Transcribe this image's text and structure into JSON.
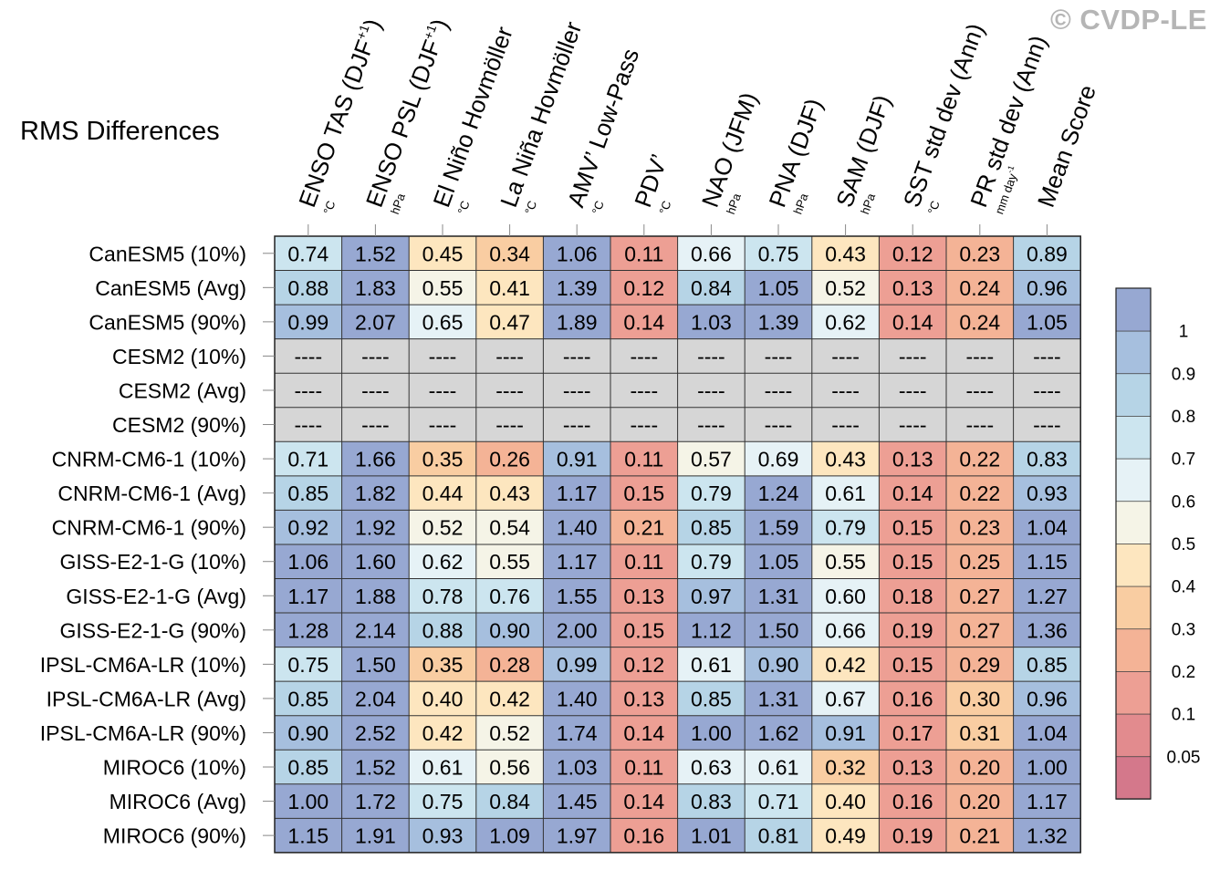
{
  "watermark": "© CVDP-LE",
  "chart_data": {
    "type": "heatmap",
    "title": "RMS Differences",
    "columns": [
      {
        "label": "ENSO TAS (DJF",
        "sup": "+1",
        "close": ")",
        "unit": "°C"
      },
      {
        "label": "ENSO PSL (DJF",
        "sup": "+1",
        "close": ")",
        "unit": "hPa"
      },
      {
        "label": "El Niño Hovmöller",
        "sup": "",
        "close": "",
        "unit": "°C"
      },
      {
        "label": "La Niña Hovmöller",
        "sup": "",
        "close": "",
        "unit": "°C"
      },
      {
        "label": "AMV’ Low-Pass",
        "sup": "",
        "close": "",
        "unit": "°C"
      },
      {
        "label": "PDV’",
        "sup": "",
        "close": "",
        "unit": "°C"
      },
      {
        "label": "NAO (JFM)",
        "sup": "",
        "close": "",
        "unit": "hPa"
      },
      {
        "label": "PNA (DJF)",
        "sup": "",
        "close": "",
        "unit": "hPa"
      },
      {
        "label": "SAM (DJF)",
        "sup": "",
        "close": "",
        "unit": "hPa"
      },
      {
        "label": "SST std dev (Ann)",
        "sup": "",
        "close": "",
        "unit": "°C"
      },
      {
        "label": "PR std dev (Ann)",
        "sup": "",
        "close": "",
        "unit": "mm day",
        "unit_sup": "-1"
      },
      {
        "label": "Mean Score",
        "sup": "",
        "close": "",
        "unit": ""
      }
    ],
    "rows": [
      {
        "label": "CanESM5 (10%)",
        "values": [
          0.74,
          1.52,
          0.45,
          0.34,
          1.06,
          0.11,
          0.66,
          0.75,
          0.43,
          0.12,
          0.23,
          0.89
        ]
      },
      {
        "label": "CanESM5 (Avg)",
        "values": [
          0.88,
          1.83,
          0.55,
          0.41,
          1.39,
          0.12,
          0.84,
          1.05,
          0.52,
          0.13,
          0.24,
          0.96
        ]
      },
      {
        "label": "CanESM5 (90%)",
        "values": [
          0.99,
          2.07,
          0.65,
          0.47,
          1.89,
          0.14,
          1.03,
          1.39,
          0.62,
          0.14,
          0.24,
          1.05
        ]
      },
      {
        "label": "CESM2 (10%)",
        "values": [
          null,
          null,
          null,
          null,
          null,
          null,
          null,
          null,
          null,
          null,
          null,
          null
        ]
      },
      {
        "label": "CESM2 (Avg)",
        "values": [
          null,
          null,
          null,
          null,
          null,
          null,
          null,
          null,
          null,
          null,
          null,
          null
        ]
      },
      {
        "label": "CESM2 (90%)",
        "values": [
          null,
          null,
          null,
          null,
          null,
          null,
          null,
          null,
          null,
          null,
          null,
          null
        ]
      },
      {
        "label": "CNRM-CM6-1 (10%)",
        "values": [
          0.71,
          1.66,
          0.35,
          0.26,
          0.91,
          0.11,
          0.57,
          0.69,
          0.43,
          0.13,
          0.22,
          0.83
        ]
      },
      {
        "label": "CNRM-CM6-1 (Avg)",
        "values": [
          0.85,
          1.82,
          0.44,
          0.43,
          1.17,
          0.15,
          0.79,
          1.24,
          0.61,
          0.14,
          0.22,
          0.93
        ]
      },
      {
        "label": "CNRM-CM6-1 (90%)",
        "values": [
          0.92,
          1.92,
          0.52,
          0.54,
          1.4,
          0.21,
          0.85,
          1.59,
          0.79,
          0.15,
          0.23,
          1.04
        ]
      },
      {
        "label": "GISS-E2-1-G (10%)",
        "values": [
          1.06,
          1.6,
          0.62,
          0.55,
          1.17,
          0.11,
          0.79,
          1.05,
          0.55,
          0.15,
          0.25,
          1.15
        ]
      },
      {
        "label": "GISS-E2-1-G (Avg)",
        "values": [
          1.17,
          1.88,
          0.78,
          0.76,
          1.55,
          0.13,
          0.97,
          1.31,
          0.6,
          0.18,
          0.27,
          1.27
        ]
      },
      {
        "label": "GISS-E2-1-G (90%)",
        "values": [
          1.28,
          2.14,
          0.88,
          0.9,
          2.0,
          0.15,
          1.12,
          1.5,
          0.66,
          0.19,
          0.27,
          1.36
        ]
      },
      {
        "label": "IPSL-CM6A-LR (10%)",
        "values": [
          0.75,
          1.5,
          0.35,
          0.28,
          0.99,
          0.12,
          0.61,
          0.9,
          0.42,
          0.15,
          0.29,
          0.85
        ]
      },
      {
        "label": "IPSL-CM6A-LR (Avg)",
        "values": [
          0.85,
          2.04,
          0.4,
          0.42,
          1.4,
          0.13,
          0.85,
          1.31,
          0.67,
          0.16,
          0.3,
          0.96
        ]
      },
      {
        "label": "IPSL-CM6A-LR (90%)",
        "values": [
          0.9,
          2.52,
          0.42,
          0.52,
          1.74,
          0.14,
          1.0,
          1.62,
          0.91,
          0.17,
          0.31,
          1.04
        ]
      },
      {
        "label": "MIROC6 (10%)",
        "values": [
          0.85,
          1.52,
          0.61,
          0.56,
          1.03,
          0.11,
          0.63,
          0.61,
          0.32,
          0.13,
          0.2,
          1.0
        ]
      },
      {
        "label": "MIROC6 (Avg)",
        "values": [
          1.0,
          1.72,
          0.75,
          0.84,
          1.45,
          0.14,
          0.83,
          0.71,
          0.4,
          0.16,
          0.2,
          1.17
        ]
      },
      {
        "label": "MIROC6 (90%)",
        "values": [
          1.15,
          1.91,
          0.93,
          1.09,
          1.97,
          0.16,
          1.01,
          0.81,
          0.49,
          0.19,
          0.21,
          1.32
        ]
      }
    ],
    "missing_label": "----",
    "colorbar": {
      "levels": [
        0.05,
        0.1,
        0.2,
        0.3,
        0.4,
        0.5,
        0.6,
        0.7,
        0.8,
        0.9,
        1
      ],
      "tick_labels": [
        "0.05",
        "0.1",
        "0.2",
        "0.3",
        "0.4",
        "0.5",
        "0.6",
        "0.7",
        "0.8",
        "0.9",
        "1"
      ],
      "colors": [
        "#d4788b",
        "#e28b8e",
        "#ed9f94",
        "#f4b396",
        "#f9cda2",
        "#fde6bf",
        "#f5f4e7",
        "#e6f2f6",
        "#cce5ef",
        "#b6d4e6",
        "#a6bfde",
        "#97a8d2"
      ]
    },
    "missing_color": "#d6d6d6"
  }
}
